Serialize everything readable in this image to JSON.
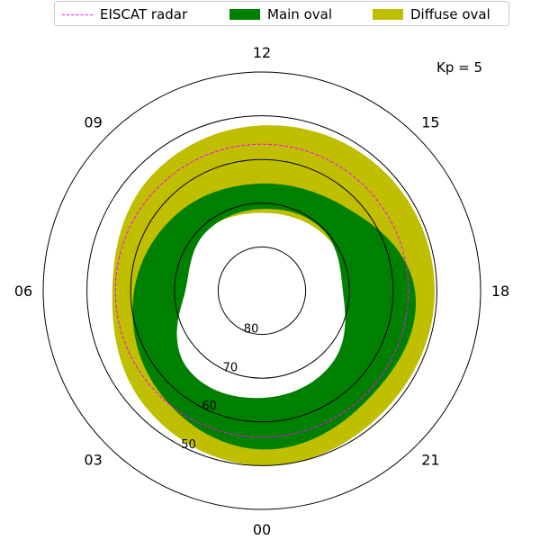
{
  "legend": {
    "items": [
      {
        "label": "EISCAT radar",
        "kind": "dashed-line",
        "color": "#ff00ff"
      },
      {
        "label": "Main oval",
        "kind": "patch",
        "color": "#008000"
      },
      {
        "label": "Diffuse oval",
        "kind": "patch",
        "color": "#bfbf00"
      }
    ]
  },
  "annotation": {
    "kp_text": "Kp = 5"
  },
  "chart_data": {
    "type": "polar",
    "projection": "magnetic latitude / magnetic local time (north polar)",
    "theta_tick_labels": [
      "12",
      "09",
      "06",
      "03",
      "00",
      "21",
      "18",
      "15"
    ],
    "theta_tick_mlt_hours": [
      12,
      9,
      6,
      3,
      0,
      21,
      18,
      15
    ],
    "radial_tick_labels": [
      "80",
      "70",
      "60",
      "50"
    ],
    "radial_tick_latitudes": [
      80,
      70,
      60,
      50
    ],
    "lat_range": [
      40,
      90
    ],
    "grid": true,
    "legend_placement": "top",
    "series": [
      {
        "name": "Diffuse oval",
        "fill_color": "#bfbf00",
        "mlt_hours": [
          0,
          3,
          6,
          9,
          12,
          15,
          18,
          21
        ],
        "equatorward_lat": [
          50.0,
          52.4,
          55.8,
          53.6,
          52.2,
          51.0,
          50.5,
          50.8
        ],
        "poleward_lat": [
          64.0,
          63.5,
          69.8,
          71.0,
          72.2,
          71.0,
          69.0,
          64.5
        ]
      },
      {
        "name": "Main oval",
        "fill_color": "#008000",
        "mlt_hours": [
          0,
          3,
          6,
          9,
          12,
          15,
          18,
          21
        ],
        "equatorward_lat": [
          53.7,
          57.0,
          60.8,
          64.0,
          65.5,
          63.0,
          55.0,
          55.3
        ],
        "poleward_lat": [
          65.5,
          65.5,
          72.5,
          71.5,
          71.3,
          70.3,
          71.5,
          67.0
        ]
      },
      {
        "name": "EISCAT radar",
        "style": "dashed",
        "color": "#ff00ff",
        "latitude": 56.5
      }
    ]
  }
}
